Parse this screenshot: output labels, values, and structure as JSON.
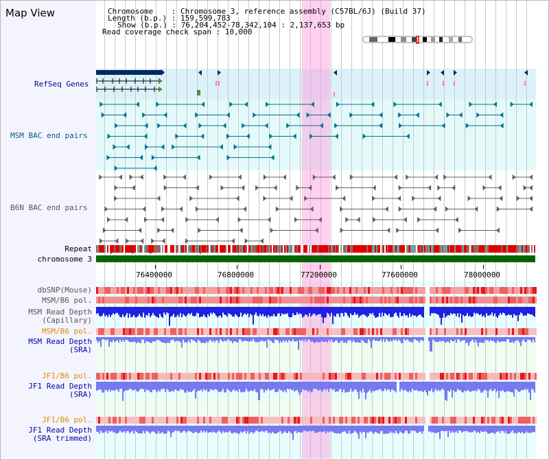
{
  "panel": {
    "title": "Map View"
  },
  "info": {
    "chromosome_line": "Chromosome    : Chromosome 3, reference assembly (C57BL/6J) (Build 37)",
    "length_line": "Length (b.p.) : 159,599,783",
    "show_line": "Show (b.p.) : 76,204,452-78,342,104 : 2,137,653 bp",
    "span_line": "Read coverage check span : 10,000"
  },
  "tracks": {
    "refseq": {
      "label": "RefSeq Genes",
      "color": "#0000a0"
    },
    "msm_bac": {
      "label": "MSM BAC end pairs",
      "color": "#005a8c"
    },
    "b6n_bac": {
      "label": "B6N BAC end pairs",
      "color": "#555555"
    },
    "repeat": {
      "label": "Repeat",
      "color": "#000000"
    },
    "chromosome": {
      "label": "chromosome 3",
      "color": "#000000"
    },
    "dbsnp": {
      "label": "dbSNP(Mouse)",
      "color": "#555555"
    },
    "msm_b6_pol_1": {
      "label": "MSM/B6 pol.",
      "color": "#555555"
    },
    "msm_depth_cap": {
      "label1": "MSM Read Depth",
      "label2": "(Capillary)",
      "color": "#555555"
    },
    "msm_b6_pol_2": {
      "label": "MSM/B6 pol.",
      "color": "#e08a00"
    },
    "msm_depth_sra": {
      "label1": "MSM Read Depth",
      "label2": "(SRA)",
      "color": "#0000a0"
    },
    "jf1_b6_pol_1": {
      "label": "JF1/B6 pol.",
      "color": "#e08a00"
    },
    "jf1_depth_sra": {
      "label1": "JF1 Read Depth",
      "label2": "(SRA)",
      "color": "#0000a0"
    },
    "jf1_b6_pol_2": {
      "label": "JF1/B6 pol.",
      "color": "#e08a00"
    },
    "jf1_depth_trim": {
      "label1": "JF1 Read Depth",
      "label2": "(SRA trimmed)",
      "color": "#0000a0"
    }
  },
  "axis": {
    "ticks": [
      "76400000",
      "76800000",
      "77200000",
      "77600000",
      "78000000"
    ]
  },
  "colors": {
    "refseq_band": "#dff3fa",
    "bac_band": "#e6fafa",
    "lower_band": "#eaffff",
    "sra_band": "#f2fff2",
    "highlight": "#ffb0e8",
    "gene": "#002a60",
    "msm_feature": "#007090",
    "b6n_feature": "#606060",
    "chromosome_bar": "#006400",
    "depth_dark": "#2020e0",
    "depth_light": "#7878f0"
  }
}
